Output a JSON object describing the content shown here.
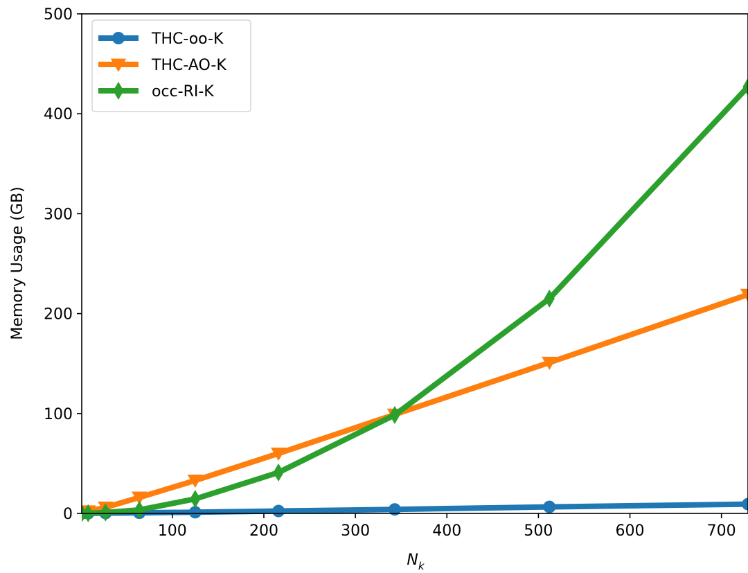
{
  "chart_data": {
    "type": "line",
    "xlabel": "N",
    "xlabel_subscript": "k",
    "ylabel": "Memory Usage (GB)",
    "xlim": [
      1,
      729
    ],
    "ylim": [
      0,
      500
    ],
    "xticks": [
      100,
      200,
      300,
      400,
      500,
      600,
      700
    ],
    "yticks": [
      0,
      100,
      200,
      300,
      400,
      500
    ],
    "grid": false,
    "legend_position": "top-left",
    "series": [
      {
        "name": "THC-oo-K",
        "color": "#1f77b4",
        "marker": "circle",
        "x": [
          1,
          8,
          27,
          64,
          125,
          216,
          343,
          512,
          729
        ],
        "y": [
          0.01,
          0.1,
          0.3,
          0.6,
          1.2,
          2.4,
          4.0,
          6.5,
          9.3
        ]
      },
      {
        "name": "THC-AO-K",
        "color": "#ff7f0e",
        "marker": "triangle-down",
        "x": [
          1,
          8,
          27,
          64,
          125,
          216,
          343,
          512,
          729
        ],
        "y": [
          0.3,
          2.2,
          6.0,
          16.0,
          33.0,
          60.0,
          99.0,
          151.0,
          219.0
        ]
      },
      {
        "name": "occ-RI-K",
        "color": "#2ca02c",
        "marker": "thin-diamond",
        "x": [
          1,
          8,
          27,
          64,
          125,
          216,
          343,
          512,
          729
        ],
        "y": [
          0.0,
          0.2,
          1.0,
          3.5,
          14.5,
          41.0,
          98.5,
          215.0,
          427.0
        ]
      }
    ]
  }
}
